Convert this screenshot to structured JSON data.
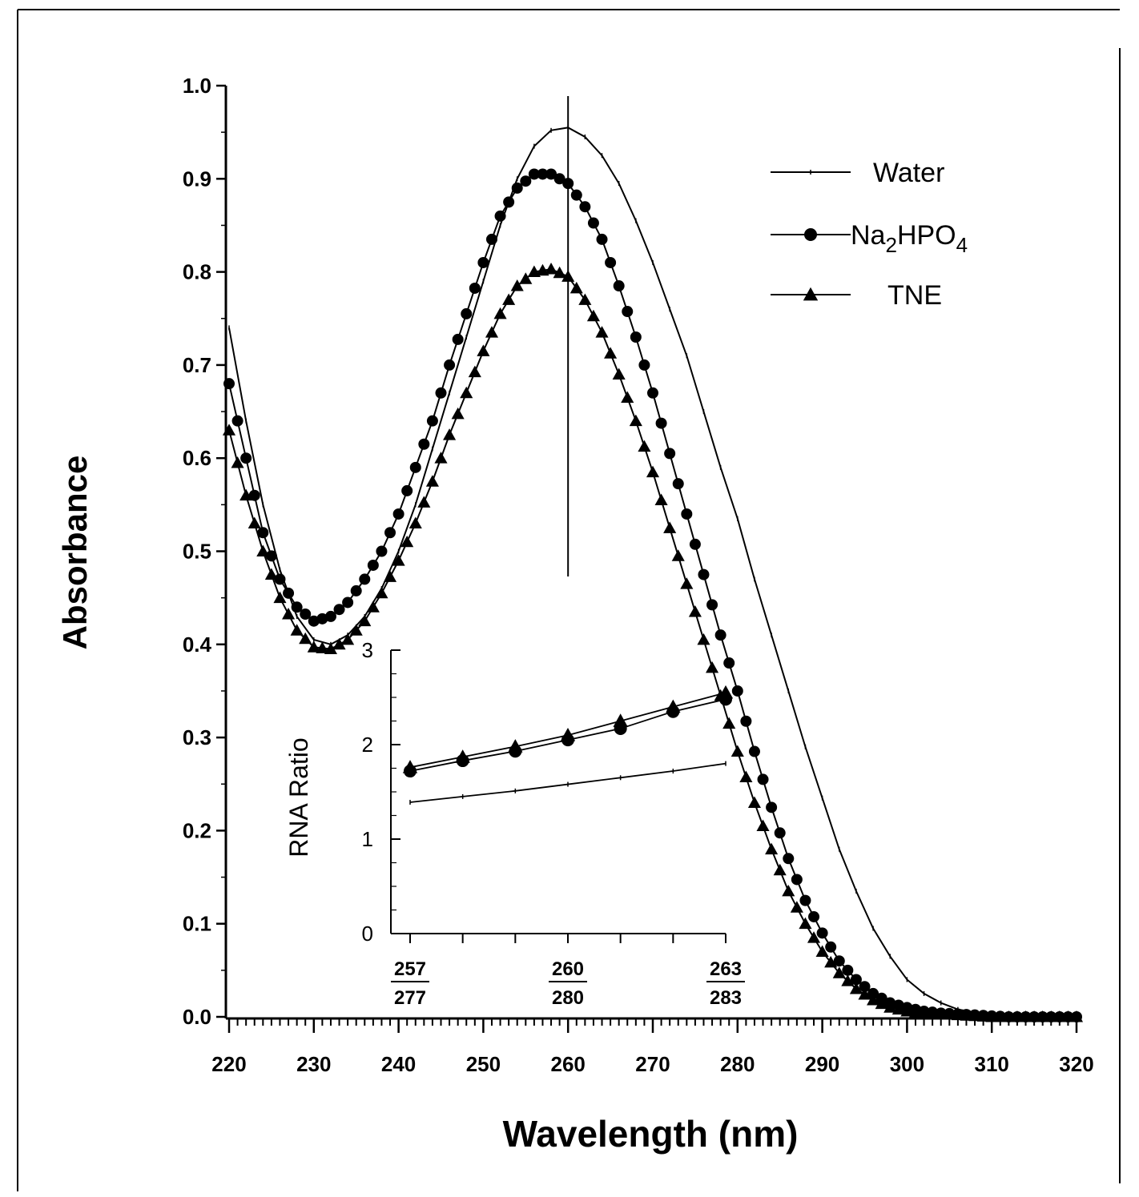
{
  "chart_data": [
    {
      "id": "main",
      "type": "line",
      "xlabel": "Wavelength (nm)",
      "ylabel": "Absorbance",
      "xlim": [
        220,
        320
      ],
      "ylim": [
        0.0,
        1.0
      ],
      "xticks": [
        "220",
        "230",
        "240",
        "250",
        "260",
        "270",
        "280",
        "290",
        "300",
        "310",
        "320"
      ],
      "yticks": [
        "0.0",
        "0.1",
        "0.2",
        "0.3",
        "0.4",
        "0.5",
        "0.6",
        "0.7",
        "0.8",
        "0.9",
        "1.0"
      ],
      "reference_line_x": 260,
      "legend_position": "top-right",
      "series": [
        {
          "name": "Water",
          "marker": "small-tick",
          "x": [
            220,
            222,
            224,
            226,
            228,
            230,
            232,
            234,
            236,
            238,
            240,
            242,
            244,
            246,
            248,
            250,
            252,
            254,
            256,
            258,
            260,
            262,
            264,
            266,
            268,
            270,
            272,
            274,
            276,
            278,
            280,
            282,
            284,
            286,
            288,
            290,
            292,
            294,
            296,
            298,
            300,
            302,
            304,
            306,
            308,
            310,
            312,
            314,
            316,
            318,
            320
          ],
          "y": [
            0.74,
            0.64,
            0.55,
            0.48,
            0.43,
            0.405,
            0.4,
            0.41,
            0.43,
            0.46,
            0.5,
            0.55,
            0.61,
            0.67,
            0.73,
            0.79,
            0.85,
            0.9,
            0.935,
            0.952,
            0.955,
            0.945,
            0.925,
            0.895,
            0.855,
            0.81,
            0.76,
            0.71,
            0.65,
            0.59,
            0.535,
            0.47,
            0.41,
            0.35,
            0.29,
            0.235,
            0.18,
            0.135,
            0.095,
            0.065,
            0.04,
            0.025,
            0.015,
            0.008,
            0.005,
            0.003,
            0.002,
            0.001,
            0.0,
            0.0,
            0.0
          ]
        },
        {
          "name": "Na2HPO4",
          "marker": "circle",
          "x": [
            220,
            222,
            224,
            226,
            228,
            230,
            232,
            234,
            236,
            238,
            240,
            242,
            244,
            246,
            248,
            250,
            252,
            254,
            256,
            258,
            260,
            262,
            264,
            266,
            268,
            270,
            272,
            274,
            276,
            278,
            280,
            282,
            284,
            286,
            288,
            290,
            292,
            294,
            296,
            298,
            300,
            302,
            304,
            306,
            308,
            310,
            312,
            314,
            316,
            318,
            320
          ],
          "y": [
            0.68,
            0.6,
            0.52,
            0.47,
            0.44,
            0.425,
            0.43,
            0.445,
            0.47,
            0.5,
            0.54,
            0.59,
            0.64,
            0.7,
            0.755,
            0.81,
            0.86,
            0.89,
            0.905,
            0.905,
            0.895,
            0.87,
            0.835,
            0.785,
            0.73,
            0.67,
            0.605,
            0.54,
            0.475,
            0.41,
            0.35,
            0.285,
            0.225,
            0.17,
            0.125,
            0.09,
            0.06,
            0.04,
            0.025,
            0.015,
            0.01,
            0.006,
            0.004,
            0.003,
            0.002,
            0.001,
            0.0,
            0.0,
            0.0,
            0.0,
            0.0
          ]
        },
        {
          "name": "TNE",
          "marker": "triangle",
          "x": [
            220,
            222,
            224,
            226,
            228,
            230,
            232,
            234,
            236,
            238,
            240,
            242,
            244,
            246,
            248,
            250,
            252,
            254,
            256,
            258,
            260,
            262,
            264,
            266,
            268,
            270,
            272,
            274,
            276,
            278,
            280,
            282,
            284,
            286,
            288,
            290,
            292,
            294,
            296,
            298,
            300,
            302,
            304,
            306,
            308,
            310,
            312,
            314,
            316,
            318,
            320
          ],
          "y": [
            0.63,
            0.56,
            0.5,
            0.45,
            0.415,
            0.397,
            0.395,
            0.405,
            0.425,
            0.455,
            0.49,
            0.53,
            0.575,
            0.625,
            0.67,
            0.715,
            0.755,
            0.785,
            0.8,
            0.803,
            0.795,
            0.77,
            0.735,
            0.69,
            0.64,
            0.585,
            0.525,
            0.465,
            0.405,
            0.345,
            0.285,
            0.23,
            0.18,
            0.135,
            0.1,
            0.07,
            0.047,
            0.03,
            0.018,
            0.01,
            0.006,
            0.004,
            0.003,
            0.002,
            0.001,
            0.0,
            0.0,
            0.0,
            0.0,
            0.0,
            0.0
          ]
        }
      ],
      "legend": [
        {
          "label": "Water",
          "marker": "small-tick"
        },
        {
          "label_main": "Na",
          "label_sub1": "2",
          "label_mid": "HPO",
          "label_sub2": "4",
          "marker": "circle"
        },
        {
          "label": "TNE",
          "marker": "triangle"
        }
      ]
    },
    {
      "id": "inset",
      "type": "line",
      "xlabel": "",
      "ylabel": "RNA Ratio",
      "ylim": [
        0,
        3
      ],
      "yticks": [
        "0",
        "1",
        "2",
        "3"
      ],
      "xtick_labels": [
        {
          "top": "257",
          "bottom": "277"
        },
        {
          "top": "260",
          "bottom": "280"
        },
        {
          "top": "263",
          "bottom": "283"
        }
      ],
      "x": [
        0,
        1,
        2,
        3,
        4,
        5,
        6
      ],
      "series": [
        {
          "name": "Water",
          "marker": "small-tick",
          "values": [
            1.39,
            1.45,
            1.51,
            1.58,
            1.65,
            1.72,
            1.8
          ]
        },
        {
          "name": "Na2HPO4",
          "marker": "circle",
          "values": [
            1.72,
            1.83,
            1.93,
            2.05,
            2.17,
            2.35,
            2.48
          ]
        },
        {
          "name": "TNE",
          "marker": "triangle",
          "values": [
            1.76,
            1.87,
            1.98,
            2.1,
            2.25,
            2.4,
            2.55
          ]
        }
      ]
    }
  ]
}
